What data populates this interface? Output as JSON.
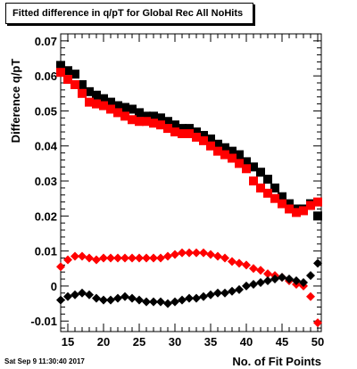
{
  "title": "Fitted difference in q/pT for Global Rec All NoHits",
  "timestamp": "Sat Sep  9 11:30:40 2017",
  "chart_data": {
    "type": "scatter",
    "title": "Fitted difference in q/pT for Global Rec All NoHits",
    "xlabel": "No. of Fit Points",
    "ylabel": "Difference q/pT",
    "xlim": [
      14,
      50.5
    ],
    "ylim": [
      -0.013,
      0.072
    ],
    "xticks": [
      15,
      20,
      25,
      30,
      35,
      40,
      45,
      50
    ],
    "yticks": [
      -0.01,
      0,
      0.01,
      0.02,
      0.03,
      0.04,
      0.05,
      0.06,
      0.07
    ],
    "ytick_labels": [
      "-0.01",
      "0",
      "0.01",
      "0.02",
      "0.03",
      "0.04",
      "0.05",
      "0.06",
      "0.07"
    ],
    "grid": false,
    "series": [
      {
        "marker": "square",
        "color": "#000000",
        "x": [
          14,
          15,
          16,
          17,
          18,
          19,
          20,
          21,
          22,
          23,
          24,
          25,
          26,
          27,
          28,
          29,
          30,
          31,
          32,
          33,
          34,
          35,
          36,
          37,
          38,
          39,
          40,
          41,
          42,
          43,
          44,
          45,
          46,
          47,
          48,
          49,
          50
        ],
        "y": [
          0.063,
          0.0615,
          0.0605,
          0.0575,
          0.0555,
          0.0545,
          0.0535,
          0.0525,
          0.0515,
          0.051,
          0.0505,
          0.0495,
          0.0485,
          0.0485,
          0.048,
          0.047,
          0.046,
          0.045,
          0.045,
          0.044,
          0.043,
          0.042,
          0.0405,
          0.0395,
          0.0385,
          0.0375,
          0.0355,
          0.034,
          0.0325,
          0.0305,
          0.028,
          0.0255,
          0.0235,
          0.022,
          0.022,
          0.0235,
          0.02
        ]
      },
      {
        "marker": "square",
        "color": "#ff0000",
        "x": [
          14,
          15,
          16,
          17,
          18,
          19,
          20,
          21,
          22,
          23,
          24,
          25,
          26,
          27,
          28,
          29,
          30,
          31,
          32,
          33,
          34,
          35,
          36,
          37,
          38,
          39,
          40,
          41,
          42,
          43,
          44,
          45,
          46,
          47,
          48,
          49,
          50
        ],
        "y": [
          0.061,
          0.059,
          0.0575,
          0.055,
          0.0525,
          0.052,
          0.0515,
          0.0505,
          0.0495,
          0.0485,
          0.0475,
          0.047,
          0.047,
          0.0465,
          0.046,
          0.045,
          0.044,
          0.0435,
          0.0435,
          0.0425,
          0.0415,
          0.04,
          0.0385,
          0.0375,
          0.0365,
          0.035,
          0.0335,
          0.03,
          0.028,
          0.0265,
          0.025,
          0.0235,
          0.022,
          0.021,
          0.0215,
          0.023,
          0.024
        ]
      },
      {
        "marker": "diamond",
        "color": "#ff0000",
        "x": [
          14,
          15,
          16,
          17,
          18,
          19,
          20,
          21,
          22,
          23,
          24,
          25,
          26,
          27,
          28,
          29,
          30,
          31,
          32,
          33,
          34,
          35,
          36,
          37,
          38,
          39,
          40,
          41,
          42,
          43,
          44,
          45,
          46,
          47,
          48,
          49,
          50
        ],
        "y": [
          0.0055,
          0.0075,
          0.0085,
          0.0085,
          0.008,
          0.0075,
          0.008,
          0.008,
          0.008,
          0.008,
          0.008,
          0.008,
          0.008,
          0.008,
          0.008,
          0.0085,
          0.009,
          0.0095,
          0.0095,
          0.0095,
          0.0095,
          0.009,
          0.0085,
          0.008,
          0.007,
          0.0065,
          0.006,
          0.005,
          0.0045,
          0.0035,
          0.003,
          0.0025,
          0.0015,
          0.0005,
          0.0,
          -0.003,
          -0.0105
        ]
      },
      {
        "marker": "diamond",
        "color": "#000000",
        "x": [
          14,
          15,
          16,
          17,
          18,
          19,
          20,
          21,
          22,
          23,
          24,
          25,
          26,
          27,
          28,
          29,
          30,
          31,
          32,
          33,
          34,
          35,
          36,
          37,
          38,
          39,
          40,
          41,
          42,
          43,
          44,
          45,
          46,
          47,
          48,
          49,
          50
        ],
        "y": [
          -0.004,
          -0.003,
          -0.0025,
          -0.002,
          -0.0025,
          -0.0035,
          -0.004,
          -0.004,
          -0.0035,
          -0.003,
          -0.0035,
          -0.004,
          -0.0045,
          -0.0045,
          -0.0045,
          -0.005,
          -0.0045,
          -0.004,
          -0.0035,
          -0.0035,
          -0.003,
          -0.0025,
          -0.002,
          -0.002,
          -0.0015,
          -0.001,
          0.0,
          0.0005,
          0.001,
          0.0015,
          0.002,
          0.0025,
          0.002,
          0.0015,
          0.001,
          0.003,
          0.0065
        ]
      }
    ]
  }
}
